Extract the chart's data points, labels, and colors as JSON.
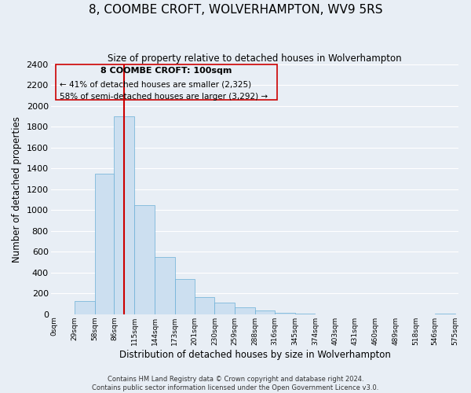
{
  "title": "8, COOMBE CROFT, WOLVERHAMPTON, WV9 5RS",
  "subtitle": "Size of property relative to detached houses in Wolverhampton",
  "xlabel": "Distribution of detached houses by size in Wolverhampton",
  "ylabel": "Number of detached properties",
  "bar_left_edges": [
    0,
    29,
    58,
    86,
    115,
    144,
    173,
    201,
    230,
    259,
    288,
    316,
    345,
    374,
    403,
    431,
    460,
    489,
    518,
    546
  ],
  "bar_heights": [
    0,
    125,
    1350,
    1900,
    1050,
    550,
    340,
    165,
    110,
    65,
    35,
    15,
    5,
    2,
    2,
    0,
    0,
    0,
    0,
    5
  ],
  "bar_widths": [
    29,
    29,
    28,
    29,
    29,
    29,
    28,
    29,
    29,
    29,
    28,
    29,
    29,
    29,
    28,
    29,
    29,
    29,
    28,
    29
  ],
  "bar_color": "#ccdff0",
  "bar_edge_color": "#6aaed6",
  "tick_labels": [
    "0sqm",
    "29sqm",
    "58sqm",
    "86sqm",
    "115sqm",
    "144sqm",
    "173sqm",
    "201sqm",
    "230sqm",
    "259sqm",
    "288sqm",
    "316sqm",
    "345sqm",
    "374sqm",
    "403sqm",
    "431sqm",
    "460sqm",
    "489sqm",
    "518sqm",
    "546sqm",
    "575sqm"
  ],
  "tick_positions": [
    0,
    29,
    58,
    86,
    115,
    144,
    173,
    201,
    230,
    259,
    288,
    316,
    345,
    374,
    403,
    431,
    460,
    489,
    518,
    546,
    575
  ],
  "ylim": [
    0,
    2400
  ],
  "xlim": [
    -5,
    580
  ],
  "property_line_x": 100,
  "property_line_color": "#cc0000",
  "annotation_title": "8 COOMBE CROFT: 100sqm",
  "annotation_line1": "← 41% of detached houses are smaller (2,325)",
  "annotation_line2": "58% of semi-detached houses are larger (3,292) →",
  "footer_line1": "Contains HM Land Registry data © Crown copyright and database right 2024.",
  "footer_line2": "Contains public sector information licensed under the Open Government Licence v3.0.",
  "bg_color": "#e8eef5",
  "grid_color": "#ffffff",
  "yticks": [
    0,
    200,
    400,
    600,
    800,
    1000,
    1200,
    1400,
    1600,
    1800,
    2000,
    2200,
    2400
  ]
}
